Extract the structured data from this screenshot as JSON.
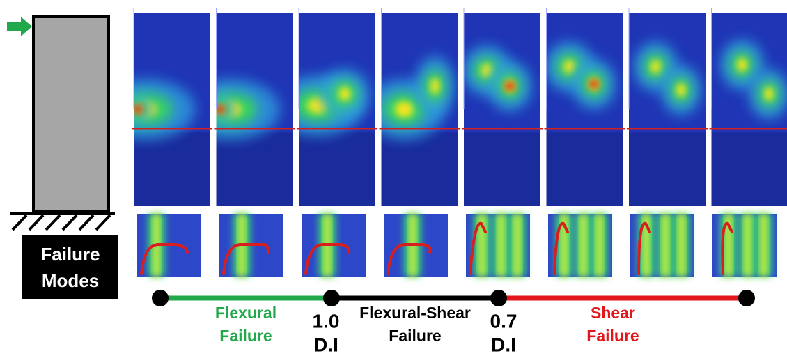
{
  "column_label": {
    "lines": [
      "Failure",
      "Modes"
    ]
  },
  "timeline": {
    "segments": [
      {
        "lines": [
          "Flexural",
          "Failure"
        ]
      },
      {
        "lines": [
          "Flexural-Shear",
          "Failure"
        ]
      },
      {
        "lines": [
          "Shear",
          "Failure"
        ]
      }
    ],
    "thresholds": [
      {
        "lines": [
          "1.0",
          "D.I"
        ]
      },
      {
        "lines": [
          "0.7",
          "D.I"
        ]
      }
    ]
  }
}
